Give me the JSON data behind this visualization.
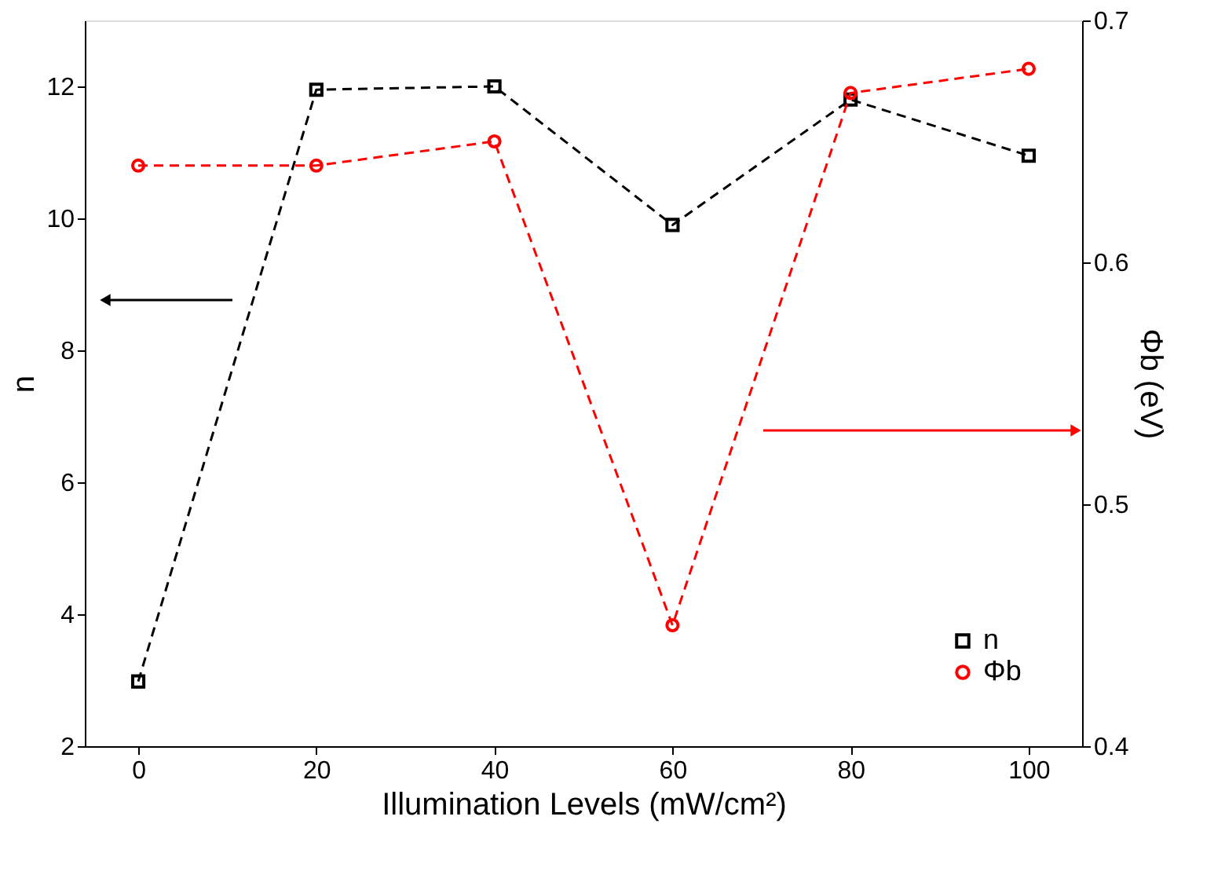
{
  "chart_data": {
    "type": "line",
    "xlabel": "Illumination Levels (mW/cm²)",
    "ylabel": "n",
    "y2label": "Φb (eV)",
    "x": [
      0,
      20,
      40,
      60,
      80,
      100
    ],
    "series": [
      {
        "name": "n",
        "color": "#000000",
        "marker": "square",
        "values": [
          2.98,
          11.95,
          12.0,
          9.9,
          11.8,
          10.95
        ]
      },
      {
        "name": "Φb",
        "color": "#ff0000",
        "marker": "circle",
        "axis": "y2",
        "values": [
          0.64,
          0.64,
          0.65,
          0.45,
          0.67,
          0.68
        ]
      }
    ],
    "xlim": [
      -6,
      106
    ],
    "xticks": [
      0,
      20,
      40,
      60,
      80,
      100
    ],
    "ylim": [
      2,
      13
    ],
    "yticks": [
      2,
      4,
      6,
      8,
      10,
      12
    ],
    "y2lim": [
      0.4,
      0.7
    ],
    "y2ticks": [
      0.4,
      0.5,
      0.6,
      0.7
    ],
    "line_style": "dashed",
    "grid": false,
    "legend": "bottom right"
  }
}
